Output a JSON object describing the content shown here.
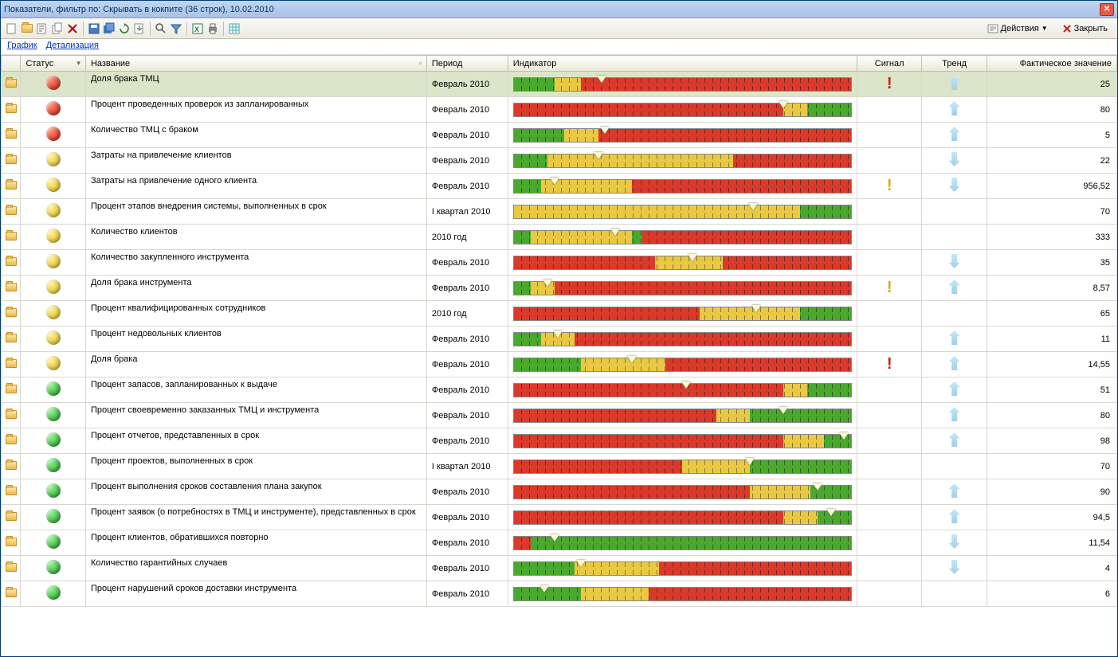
{
  "window": {
    "title": "Показатели,  фильтр по: Скрывать в кокпите (36 строк), 10.02.2010"
  },
  "toolbar": {
    "actions_label": "Действия",
    "close_label": "Закрыть"
  },
  "links": {
    "chart": "График",
    "detail": "Детализация"
  },
  "columns": {
    "status": "Статус",
    "name": "Название",
    "period": "Период",
    "indicator": "Индикатор",
    "signal": "Сигнал",
    "trend": "Тренд",
    "value": "Фактическое значение"
  },
  "indicator_colors": {
    "red": "#d93a2b",
    "yellow": "#e9c944",
    "green": "#4aa82e"
  },
  "rows": [
    {
      "selected": true,
      "status": "red",
      "name": "Доля брака ТМЦ",
      "period": "Февраль 2010",
      "segments": [
        [
          "green",
          12
        ],
        [
          "yellow",
          8
        ],
        [
          "red",
          80
        ]
      ],
      "marker": 26,
      "signal": "red",
      "trend": "up",
      "value": "25"
    },
    {
      "status": "red",
      "name": "Процент проведенных проверок из запланированных",
      "period": "Февраль 2010",
      "segments": [
        [
          "red",
          80
        ],
        [
          "yellow",
          7
        ],
        [
          "green",
          13
        ]
      ],
      "marker": 80,
      "signal": "",
      "trend": "up",
      "value": "80"
    },
    {
      "status": "red",
      "name": "Количество ТМЦ с браком",
      "period": "Февраль 2010",
      "segments": [
        [
          "green",
          15
        ],
        [
          "yellow",
          10
        ],
        [
          "red",
          75
        ]
      ],
      "marker": 27,
      "signal": "",
      "trend": "up",
      "value": "5"
    },
    {
      "status": "yellow",
      "name": "Затраты на привлечение клиентов",
      "period": "Февраль 2010",
      "segments": [
        [
          "green",
          10
        ],
        [
          "yellow",
          55
        ],
        [
          "red",
          35
        ]
      ],
      "marker": 25,
      "signal": "",
      "trend": "down",
      "value": "22"
    },
    {
      "status": "yellow",
      "name": "Затраты на привлечение одного клиента",
      "period": "Февраль 2010",
      "segments": [
        [
          "green",
          8
        ],
        [
          "yellow",
          27
        ],
        [
          "red",
          65
        ]
      ],
      "marker": 12,
      "signal": "yellow",
      "trend": "down",
      "value": "956,52"
    },
    {
      "status": "yellow",
      "name": "Процент этапов внедрения системы, выполненных в срок",
      "period": "I квартал 2010",
      "segments": [
        [
          "yellow",
          85
        ],
        [
          "green",
          15
        ]
      ],
      "marker": 71,
      "signal": "",
      "trend": "",
      "value": "70"
    },
    {
      "status": "yellow",
      "name": "Количество клиентов",
      "period": "2010 год",
      "segments": [
        [
          "green",
          5
        ],
        [
          "yellow",
          30
        ],
        [
          "green",
          3
        ],
        [
          "red",
          62
        ]
      ],
      "marker": 30,
      "signal": "",
      "trend": "",
      "value": "333"
    },
    {
      "status": "yellow",
      "name": "Количество закупленного инструмента",
      "period": "Февраль 2010",
      "segments": [
        [
          "red",
          42
        ],
        [
          "yellow",
          20
        ],
        [
          "red",
          38
        ]
      ],
      "marker": 53,
      "signal": "",
      "trend": "down",
      "value": "35"
    },
    {
      "status": "yellow",
      "name": "Доля брака инструмента",
      "period": "Февраль 2010",
      "segments": [
        [
          "green",
          5
        ],
        [
          "yellow",
          7
        ],
        [
          "red",
          88
        ]
      ],
      "marker": 10,
      "signal": "yellow",
      "trend": "up",
      "value": "8,57"
    },
    {
      "status": "yellow",
      "name": "Процент квалифицированных сотрудников",
      "period": "2010 год",
      "segments": [
        [
          "red",
          55
        ],
        [
          "yellow",
          30
        ],
        [
          "green",
          15
        ]
      ],
      "marker": 72,
      "signal": "",
      "trend": "",
      "value": "65"
    },
    {
      "status": "yellow",
      "name": "Процент недовольных клиентов",
      "period": "Февраль 2010",
      "segments": [
        [
          "green",
          8
        ],
        [
          "yellow",
          10
        ],
        [
          "red",
          82
        ]
      ],
      "marker": 13,
      "signal": "",
      "trend": "up",
      "value": "11"
    },
    {
      "status": "yellow",
      "name": "Доля брака",
      "period": "Февраль 2010",
      "segments": [
        [
          "green",
          20
        ],
        [
          "yellow",
          25
        ],
        [
          "red",
          55
        ]
      ],
      "marker": 35,
      "signal": "red",
      "trend": "up",
      "value": "14,55"
    },
    {
      "status": "green",
      "name": "Процент запасов, запланированных к выдаче",
      "period": "Февраль 2010",
      "segments": [
        [
          "red",
          80
        ],
        [
          "yellow",
          7
        ],
        [
          "green",
          13
        ]
      ],
      "marker": 51,
      "signal": "",
      "trend": "up",
      "value": "51"
    },
    {
      "status": "green",
      "name": "Процент своевременно заказанных ТМЦ и инструмента",
      "period": "Февраль 2010",
      "segments": [
        [
          "red",
          60
        ],
        [
          "yellow",
          10
        ],
        [
          "green",
          30
        ]
      ],
      "marker": 80,
      "signal": "",
      "trend": "up",
      "value": "80"
    },
    {
      "status": "green",
      "name": "Процент отчетов, представленных в срок",
      "period": "Февраль 2010",
      "segments": [
        [
          "red",
          80
        ],
        [
          "yellow",
          12
        ],
        [
          "green",
          8
        ]
      ],
      "marker": 98,
      "signal": "",
      "trend": "up",
      "value": "98"
    },
    {
      "status": "green",
      "name": "Процент проектов, выполненных в срок",
      "period": "I квартал 2010",
      "segments": [
        [
          "red",
          50
        ],
        [
          "yellow",
          20
        ],
        [
          "green",
          30
        ]
      ],
      "marker": 70,
      "signal": "",
      "trend": "",
      "value": "70"
    },
    {
      "status": "green",
      "name": "Процент выполнения сроков составления плана закупок",
      "period": "Февраль 2010",
      "segments": [
        [
          "red",
          70
        ],
        [
          "yellow",
          18
        ],
        [
          "green",
          12
        ]
      ],
      "marker": 90,
      "signal": "",
      "trend": "up",
      "value": "90"
    },
    {
      "status": "green",
      "name": "Процент заявок (о потребностях в ТМЦ и инструменте), представленных в срок",
      "period": "Февраль 2010",
      "segments": [
        [
          "red",
          80
        ],
        [
          "yellow",
          10
        ],
        [
          "green",
          10
        ]
      ],
      "marker": 94,
      "signal": "",
      "trend": "up",
      "value": "94,5"
    },
    {
      "status": "green",
      "name": "Процент клиентов, обратившихся повторно",
      "period": "Февраль 2010",
      "segments": [
        [
          "red",
          5
        ],
        [
          "green",
          95
        ]
      ],
      "marker": 12,
      "signal": "",
      "trend": "down",
      "value": "11,54"
    },
    {
      "status": "green",
      "name": "Количество гарантийных случаев",
      "period": "Февраль 2010",
      "segments": [
        [
          "green",
          18
        ],
        [
          "yellow",
          25
        ],
        [
          "red",
          57
        ]
      ],
      "marker": 20,
      "signal": "",
      "trend": "down",
      "value": "4"
    },
    {
      "status": "green",
      "name": "Процент нарушений сроков доставки инструмента",
      "period": "Февраль 2010",
      "segments": [
        [
          "green",
          20
        ],
        [
          "yellow",
          20
        ],
        [
          "red",
          60
        ]
      ],
      "marker": 9,
      "signal": "",
      "trend": "",
      "value": "6"
    }
  ]
}
